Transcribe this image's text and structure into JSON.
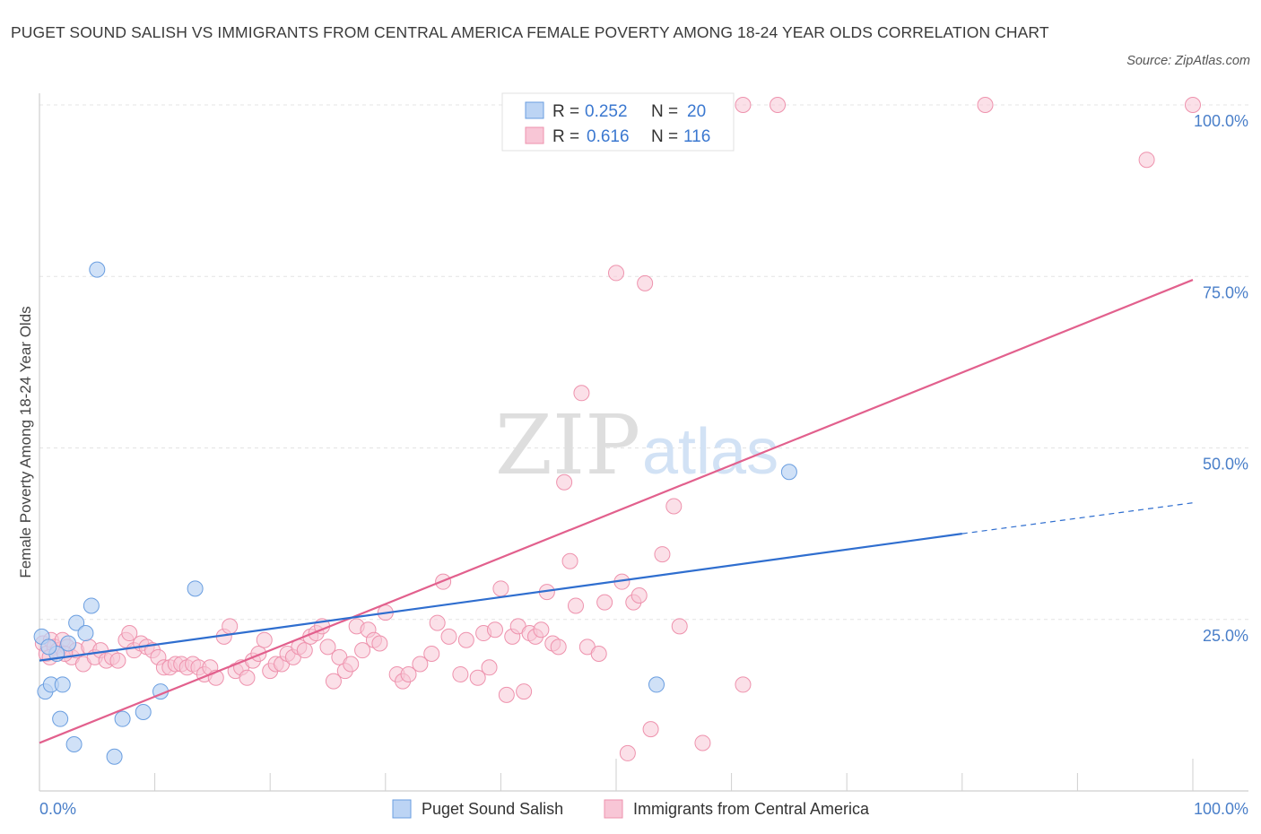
{
  "title": "PUGET SOUND SALISH VS IMMIGRANTS FROM CENTRAL AMERICA FEMALE POVERTY AMONG 18-24 YEAR OLDS CORRELATION CHART",
  "source": "Source: ZipAtlas.com",
  "watermark": {
    "zip": "ZIP",
    "atlas": "atlas"
  },
  "legend_top": {
    "rows": [
      {
        "r_label": "R = ",
        "r_value": "0.252",
        "n_label": "N = ",
        "n_value": "20",
        "color": "#aac8f0"
      },
      {
        "r_label": "R = ",
        "r_value": "0.616",
        "n_label": "N = ",
        "n_value": "116",
        "color": "#f6b8cc"
      }
    ]
  },
  "legend_bottom": [
    "Puget Sound Salish",
    "Immigrants from Central America"
  ],
  "chart_data": {
    "type": "scatter",
    "title": "PUGET SOUND SALISH VS IMMIGRANTS FROM CENTRAL AMERICA FEMALE POVERTY AMONG 18-24 YEAR OLDS CORRELATION CHART",
    "xlabel": "",
    "ylabel": "Female Poverty Among 18-24 Year Olds",
    "xlim": [
      0,
      100
    ],
    "ylim": [
      0,
      100
    ],
    "x_tick_labels": [
      "0.0%",
      "100.0%"
    ],
    "y_ticks": [
      25,
      50,
      75,
      100
    ],
    "y_tick_labels": [
      "25.0%",
      "50.0%",
      "75.0%",
      "100.0%"
    ],
    "grid": true,
    "legend_position": "top-center",
    "series": [
      {
        "name": "Puget Sound Salish",
        "color": "#6a9ee0",
        "fill": "#bcd4f4",
        "points": [
          [
            0.2,
            22.5
          ],
          [
            0.5,
            14.5
          ],
          [
            1.0,
            15.5
          ],
          [
            1.5,
            20.0
          ],
          [
            2.0,
            15.5
          ],
          [
            2.5,
            21.5
          ],
          [
            3.0,
            6.8
          ],
          [
            3.2,
            24.5
          ],
          [
            4.0,
            23.0
          ],
          [
            4.5,
            27.0
          ],
          [
            5.0,
            76.0
          ],
          [
            1.8,
            10.5
          ],
          [
            6.5,
            5.0
          ],
          [
            7.2,
            10.5
          ],
          [
            9.0,
            11.5
          ],
          [
            10.5,
            14.5
          ],
          [
            13.5,
            29.5
          ],
          [
            53.5,
            15.5
          ],
          [
            65.0,
            46.5
          ],
          [
            0.8,
            21.0
          ]
        ],
        "trend": {
          "x": [
            0,
            80
          ],
          "y": [
            19.0,
            37.5
          ],
          "dashed_x": [
            80,
            100
          ],
          "dashed_y": [
            37.5,
            42.0
          ],
          "color": "#2f6ecf"
        }
      },
      {
        "name": "Immigrants from Central America",
        "color": "#ee92ad",
        "fill": "#f8c6d6",
        "points": [
          [
            0.3,
            21.5
          ],
          [
            0.6,
            20.0
          ],
          [
            1.0,
            22.0
          ],
          [
            1.3,
            21.0
          ],
          [
            1.6,
            20.5
          ],
          [
            2.0,
            22.0
          ],
          [
            2.4,
            21.0
          ],
          [
            2.8,
            19.5
          ],
          [
            3.2,
            20.5
          ],
          [
            3.8,
            18.5
          ],
          [
            4.3,
            21.0
          ],
          [
            4.8,
            19.5
          ],
          [
            5.3,
            20.5
          ],
          [
            5.8,
            19.0
          ],
          [
            6.3,
            19.5
          ],
          [
            6.8,
            19.0
          ],
          [
            7.5,
            22.0
          ],
          [
            7.8,
            23.0
          ],
          [
            8.2,
            20.5
          ],
          [
            8.8,
            21.5
          ],
          [
            9.3,
            21.0
          ],
          [
            9.8,
            20.5
          ],
          [
            10.3,
            19.5
          ],
          [
            10.8,
            18.0
          ],
          [
            11.3,
            18.0
          ],
          [
            11.8,
            18.5
          ],
          [
            12.3,
            18.5
          ],
          [
            12.8,
            18.0
          ],
          [
            13.3,
            18.5
          ],
          [
            13.8,
            18.0
          ],
          [
            14.3,
            17.0
          ],
          [
            14.8,
            18.0
          ],
          [
            15.3,
            16.5
          ],
          [
            16.0,
            22.5
          ],
          [
            16.5,
            24.0
          ],
          [
            17.0,
            17.5
          ],
          [
            17.5,
            18.0
          ],
          [
            18.0,
            16.5
          ],
          [
            18.5,
            19.0
          ],
          [
            19.0,
            20.0
          ],
          [
            19.5,
            22.0
          ],
          [
            20.0,
            17.5
          ],
          [
            20.5,
            18.5
          ],
          [
            21.0,
            18.5
          ],
          [
            21.5,
            20.0
          ],
          [
            22.0,
            19.5
          ],
          [
            22.5,
            21.0
          ],
          [
            23.0,
            20.5
          ],
          [
            23.5,
            22.5
          ],
          [
            24.0,
            23.0
          ],
          [
            24.5,
            24.0
          ],
          [
            25.0,
            21.0
          ],
          [
            25.5,
            16.0
          ],
          [
            26.0,
            19.5
          ],
          [
            26.5,
            17.5
          ],
          [
            27.0,
            18.5
          ],
          [
            27.5,
            24.0
          ],
          [
            28.0,
            20.5
          ],
          [
            28.5,
            23.5
          ],
          [
            29.0,
            22.0
          ],
          [
            29.5,
            21.5
          ],
          [
            30.0,
            26.0
          ],
          [
            31.0,
            17.0
          ],
          [
            31.5,
            16.0
          ],
          [
            32.0,
            17.0
          ],
          [
            33.0,
            18.5
          ],
          [
            34.0,
            20.0
          ],
          [
            34.5,
            24.5
          ],
          [
            35.0,
            30.5
          ],
          [
            35.5,
            22.5
          ],
          [
            36.5,
            17.0
          ],
          [
            37.0,
            22.0
          ],
          [
            38.0,
            16.5
          ],
          [
            38.5,
            23.0
          ],
          [
            39.0,
            18.0
          ],
          [
            39.5,
            23.5
          ],
          [
            40.0,
            29.5
          ],
          [
            40.5,
            14.0
          ],
          [
            41.0,
            22.5
          ],
          [
            41.5,
            24.0
          ],
          [
            42.0,
            14.5
          ],
          [
            42.5,
            23.0
          ],
          [
            43.0,
            22.5
          ],
          [
            43.5,
            23.5
          ],
          [
            44.0,
            29.0
          ],
          [
            44.5,
            21.5
          ],
          [
            45.0,
            21.0
          ],
          [
            45.5,
            45.0
          ],
          [
            46.0,
            33.5
          ],
          [
            46.5,
            27.0
          ],
          [
            47.0,
            58.0
          ],
          [
            47.5,
            21.0
          ],
          [
            48.5,
            20.0
          ],
          [
            49.0,
            27.5
          ],
          [
            50.0,
            75.5
          ],
          [
            50.5,
            30.5
          ],
          [
            51.0,
            5.5
          ],
          [
            51.5,
            27.5
          ],
          [
            52.0,
            28.5
          ],
          [
            52.5,
            74.0
          ],
          [
            53.0,
            9.0
          ],
          [
            54.0,
            34.5
          ],
          [
            55.0,
            41.5
          ],
          [
            55.5,
            24.0
          ],
          [
            57.5,
            7.0
          ],
          [
            61.0,
            15.5
          ],
          [
            56.0,
            100.0
          ],
          [
            57.0,
            100.0
          ],
          [
            61.0,
            100.0
          ],
          [
            64.0,
            100.0
          ],
          [
            82.0,
            100.0
          ],
          [
            100.0,
            100.0
          ],
          [
            96.0,
            92.0
          ],
          [
            58.0,
            100.0
          ],
          [
            0.9,
            19.5
          ],
          [
            2.2,
            20.0
          ]
        ],
        "trend": {
          "x": [
            0,
            100
          ],
          "y": [
            7.0,
            74.5
          ],
          "color": "#e2608d"
        }
      }
    ]
  }
}
